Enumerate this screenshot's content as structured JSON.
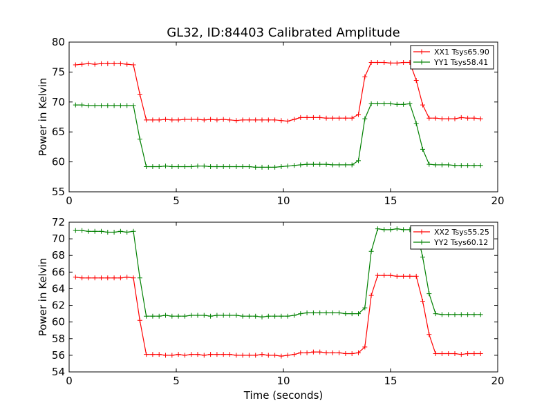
{
  "figure_title": "GL32, ID:84403 Calibrated Amplitude",
  "chart_data": [
    {
      "type": "line",
      "title": "GL32, ID:84403 Calibrated Amplitude",
      "xlabel": "",
      "ylabel": "Power in Kelvin",
      "xlim": [
        0,
        20
      ],
      "ylim": [
        55,
        80
      ],
      "xticks": [
        0,
        5,
        10,
        15,
        20
      ],
      "yticks": [
        55,
        60,
        65,
        70,
        75,
        80
      ],
      "grid": false,
      "legend_position": "top-right",
      "series": [
        {
          "name": "XX1 Tsys65.90",
          "color": "#ff0000",
          "x": [
            0.3,
            0.6,
            0.9,
            1.2,
            1.5,
            1.8,
            2.1,
            2.4,
            2.7,
            3.0,
            3.3,
            3.6,
            3.9,
            4.2,
            4.5,
            4.8,
            5.1,
            5.4,
            5.7,
            6.0,
            6.3,
            6.6,
            6.9,
            7.2,
            7.5,
            7.8,
            8.1,
            8.4,
            8.7,
            9.0,
            9.3,
            9.6,
            9.9,
            10.2,
            10.5,
            10.8,
            11.1,
            11.4,
            11.7,
            12.0,
            12.3,
            12.6,
            12.9,
            13.2,
            13.5,
            13.8,
            14.1,
            14.4,
            14.7,
            15.0,
            15.3,
            15.6,
            15.9,
            16.2,
            16.5,
            16.8,
            17.1,
            17.4,
            17.7,
            18.0,
            18.3,
            18.6,
            18.9,
            19.2
          ],
          "values": [
            76.2,
            76.3,
            76.4,
            76.3,
            76.4,
            76.4,
            76.4,
            76.4,
            76.3,
            76.2,
            71.3,
            67.0,
            67.0,
            67.0,
            67.1,
            67.0,
            67.0,
            67.1,
            67.1,
            67.1,
            67.0,
            67.1,
            67.0,
            67.1,
            67.0,
            66.9,
            67.0,
            67.0,
            67.0,
            67.0,
            67.0,
            67.0,
            66.9,
            66.8,
            67.1,
            67.4,
            67.4,
            67.4,
            67.4,
            67.3,
            67.3,
            67.3,
            67.3,
            67.3,
            67.9,
            74.2,
            76.6,
            76.6,
            76.6,
            76.5,
            76.5,
            76.6,
            76.6,
            73.6,
            69.5,
            67.3,
            67.3,
            67.2,
            67.2,
            67.2,
            67.4,
            67.3,
            67.3,
            67.2
          ]
        },
        {
          "name": "YY1 Tsys58.41",
          "color": "#008000",
          "x": [
            0.3,
            0.6,
            0.9,
            1.2,
            1.5,
            1.8,
            2.1,
            2.4,
            2.7,
            3.0,
            3.3,
            3.6,
            3.9,
            4.2,
            4.5,
            4.8,
            5.1,
            5.4,
            5.7,
            6.0,
            6.3,
            6.6,
            6.9,
            7.2,
            7.5,
            7.8,
            8.1,
            8.4,
            8.7,
            9.0,
            9.3,
            9.6,
            9.9,
            10.2,
            10.5,
            10.8,
            11.1,
            11.4,
            11.7,
            12.0,
            12.3,
            12.6,
            12.9,
            13.2,
            13.5,
            13.8,
            14.1,
            14.4,
            14.7,
            15.0,
            15.3,
            15.6,
            15.9,
            16.2,
            16.5,
            16.8,
            17.1,
            17.4,
            17.7,
            18.0,
            18.3,
            18.6,
            18.9,
            19.2
          ],
          "values": [
            69.5,
            69.5,
            69.4,
            69.4,
            69.4,
            69.4,
            69.4,
            69.4,
            69.4,
            69.4,
            63.8,
            59.2,
            59.2,
            59.2,
            59.3,
            59.2,
            59.2,
            59.2,
            59.2,
            59.3,
            59.3,
            59.2,
            59.2,
            59.2,
            59.2,
            59.2,
            59.2,
            59.2,
            59.1,
            59.1,
            59.1,
            59.1,
            59.2,
            59.3,
            59.4,
            59.5,
            59.6,
            59.6,
            59.6,
            59.6,
            59.5,
            59.5,
            59.5,
            59.5,
            60.2,
            67.2,
            69.7,
            69.7,
            69.7,
            69.7,
            69.6,
            69.6,
            69.7,
            66.4,
            62.1,
            59.6,
            59.5,
            59.5,
            59.5,
            59.4,
            59.4,
            59.4,
            59.4,
            59.4
          ]
        }
      ]
    },
    {
      "type": "line",
      "title": "",
      "xlabel": "Time (seconds)",
      "ylabel": "Power in Kelvin",
      "xlim": [
        0,
        20
      ],
      "ylim": [
        54,
        72
      ],
      "xticks": [
        0,
        5,
        10,
        15,
        20
      ],
      "yticks": [
        54,
        56,
        58,
        60,
        62,
        64,
        66,
        68,
        70,
        72
      ],
      "grid": false,
      "legend_position": "top-right",
      "series": [
        {
          "name": "XX2 Tsys55.25",
          "color": "#ff0000",
          "x": [
            0.3,
            0.6,
            0.9,
            1.2,
            1.5,
            1.8,
            2.1,
            2.4,
            2.7,
            3.0,
            3.3,
            3.6,
            3.9,
            4.2,
            4.5,
            4.8,
            5.1,
            5.4,
            5.7,
            6.0,
            6.3,
            6.6,
            6.9,
            7.2,
            7.5,
            7.8,
            8.1,
            8.4,
            8.7,
            9.0,
            9.3,
            9.6,
            9.9,
            10.2,
            10.5,
            10.8,
            11.1,
            11.4,
            11.7,
            12.0,
            12.3,
            12.6,
            12.9,
            13.2,
            13.5,
            13.8,
            14.1,
            14.4,
            14.7,
            15.0,
            15.3,
            15.6,
            15.9,
            16.2,
            16.5,
            16.8,
            17.1,
            17.4,
            17.7,
            18.0,
            18.3,
            18.6,
            18.9,
            19.2
          ],
          "values": [
            65.4,
            65.3,
            65.3,
            65.3,
            65.3,
            65.3,
            65.3,
            65.3,
            65.4,
            65.3,
            60.2,
            56.1,
            56.1,
            56.1,
            56.0,
            56.0,
            56.1,
            56.0,
            56.1,
            56.1,
            56.0,
            56.1,
            56.1,
            56.1,
            56.1,
            56.0,
            56.0,
            56.0,
            56.0,
            56.1,
            56.0,
            56.0,
            55.9,
            56.0,
            56.1,
            56.3,
            56.3,
            56.4,
            56.4,
            56.3,
            56.3,
            56.3,
            56.2,
            56.2,
            56.3,
            57.0,
            63.2,
            65.6,
            65.6,
            65.6,
            65.5,
            65.5,
            65.5,
            65.5,
            62.5,
            58.5,
            56.2,
            56.2,
            56.2,
            56.2,
            56.1,
            56.2,
            56.2,
            56.2
          ]
        },
        {
          "name": "YY2 Tsys60.12",
          "color": "#008000",
          "x": [
            0.3,
            0.6,
            0.9,
            1.2,
            1.5,
            1.8,
            2.1,
            2.4,
            2.7,
            3.0,
            3.3,
            3.6,
            3.9,
            4.2,
            4.5,
            4.8,
            5.1,
            5.4,
            5.7,
            6.0,
            6.3,
            6.6,
            6.9,
            7.2,
            7.5,
            7.8,
            8.1,
            8.4,
            8.7,
            9.0,
            9.3,
            9.6,
            9.9,
            10.2,
            10.5,
            10.8,
            11.1,
            11.4,
            11.7,
            12.0,
            12.3,
            12.6,
            12.9,
            13.2,
            13.5,
            13.8,
            14.1,
            14.4,
            14.7,
            15.0,
            15.3,
            15.6,
            15.9,
            16.2,
            16.5,
            16.8,
            17.1,
            17.4,
            17.7,
            18.0,
            18.3,
            18.6,
            18.9,
            19.2
          ],
          "values": [
            71.0,
            71.0,
            70.9,
            70.9,
            70.9,
            70.8,
            70.8,
            70.9,
            70.8,
            70.9,
            65.3,
            60.7,
            60.7,
            60.7,
            60.8,
            60.7,
            60.7,
            60.7,
            60.8,
            60.8,
            60.8,
            60.7,
            60.8,
            60.8,
            60.8,
            60.8,
            60.7,
            60.7,
            60.7,
            60.6,
            60.7,
            60.7,
            60.7,
            60.7,
            60.8,
            61.0,
            61.1,
            61.1,
            61.1,
            61.1,
            61.1,
            61.1,
            61.0,
            61.0,
            61.0,
            61.7,
            68.5,
            71.2,
            71.1,
            71.1,
            71.2,
            71.1,
            71.1,
            71.1,
            67.8,
            63.4,
            61.0,
            60.9,
            60.9,
            60.9,
            60.9,
            60.9,
            60.9,
            60.9
          ]
        }
      ]
    }
  ]
}
